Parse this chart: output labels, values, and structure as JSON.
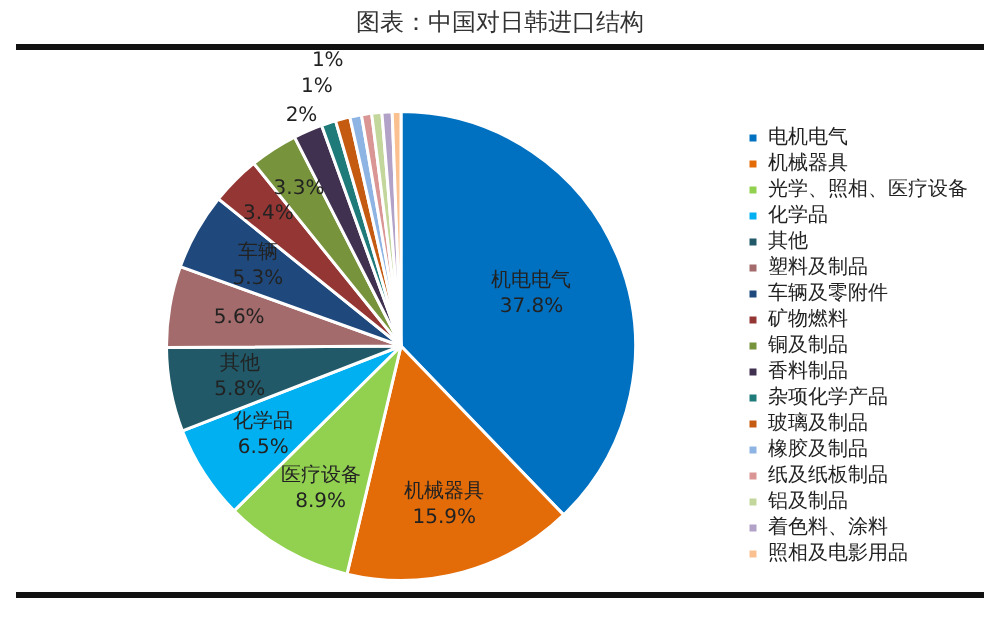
{
  "chart_data": {
    "type": "pie",
    "title": "图表：中国对日韩进口结构",
    "categories": [
      "电机电气",
      "机械器具",
      "光学、照相、医疗设备",
      "化学品",
      "其他",
      "塑料及制品",
      "车辆及零附件",
      "矿物燃料",
      "铜及制品",
      "香料制品",
      "杂项化学产品",
      "玻璃及制品",
      "橡胶及制品",
      "纸及纸板制品",
      "铝及制品",
      "着色料、涂料",
      "照相及电影用品"
    ],
    "values": [
      37.8,
      15.9,
      8.9,
      6.5,
      5.8,
      5.6,
      5.3,
      3.4,
      3.3,
      2,
      1,
      1,
      0.8,
      0.7,
      0.7,
      0.7,
      0.6
    ],
    "colors": [
      "#0070c0",
      "#e36c09",
      "#92d050",
      "#00b0f0",
      "#215968",
      "#a36b6b",
      "#1f497d",
      "#943634",
      "#77933c",
      "#403151",
      "#1f7a7a",
      "#c55a11",
      "#8eb4e3",
      "#d99694",
      "#c3d69b",
      "#b3a2c7",
      "#fac090"
    ],
    "value_labels": [
      "机电电气\n37.8%",
      "机械器具\n15.9%",
      "医疗设备\n8.9%",
      "化学品\n6.5%",
      "其他\n5.8%",
      "5.6%",
      "车辆\n5.3%",
      "3.4%",
      "3.3%",
      "2%",
      "1%",
      "1%",
      null,
      null,
      null,
      null,
      null
    ],
    "legend": "right"
  }
}
